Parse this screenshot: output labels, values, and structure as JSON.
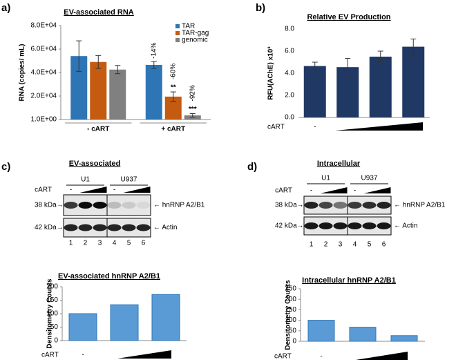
{
  "panel_labels": [
    "a)",
    "b)",
    "c)",
    "d)"
  ],
  "chart_data": [
    {
      "type": "bar",
      "title": "EV-associated RNA",
      "ylabel": "RNA (copies/ mL)",
      "categories": [
        "- cART",
        "+ cART"
      ],
      "series": [
        {
          "name": "TAR",
          "color": "#2e75b6",
          "values": [
            54000,
            46500
          ],
          "errors": [
            13000,
            3000
          ],
          "percent_labels": [
            null,
            "-14%"
          ],
          "significance": [
            null,
            null
          ]
        },
        {
          "name": "TAR-gag",
          "color": "#c55a11",
          "values": [
            49000,
            19500
          ],
          "errors": [
            5500,
            4000
          ],
          "percent_labels": [
            null,
            "-60%"
          ],
          "significance": [
            null,
            "**"
          ]
        },
        {
          "name": "genomic",
          "color": "#808080",
          "values": [
            42500,
            3500
          ],
          "errors": [
            3500,
            1500
          ],
          "percent_labels": [
            null,
            "-92%"
          ],
          "significance": [
            null,
            "***"
          ]
        }
      ],
      "ylim": [
        1,
        80000
      ],
      "yticks": [
        {
          "value": 1,
          "label": "1.0E+00"
        },
        {
          "value": 20000,
          "label": "2.0E+04"
        },
        {
          "value": 40000,
          "label": "4.0E+04"
        },
        {
          "value": 60000,
          "label": "6.0E+04"
        },
        {
          "value": 80000,
          "label": "8.0E+04"
        }
      ],
      "legend": "top-right"
    },
    {
      "type": "bar",
      "title": "Relative EV Production",
      "ylabel": "RFU(AChE) x10³",
      "xlabel": "cART",
      "categories": [
        "-",
        null,
        null,
        null
      ],
      "color": "#203864",
      "values": [
        4.65,
        4.55,
        5.5,
        6.4
      ],
      "errors": [
        0.35,
        0.8,
        0.5,
        0.7
      ],
      "ylim": [
        0,
        8
      ],
      "yticks": [
        {
          "value": 0,
          "label": "0.0"
        },
        {
          "value": 2,
          "label": "2.0"
        },
        {
          "value": 4,
          "label": "4.0"
        },
        {
          "value": 6,
          "label": "6.0"
        },
        {
          "value": 8,
          "label": "8.0"
        }
      ]
    },
    {
      "type": "bar",
      "title": "EV-associated hnRNP A2/B1",
      "ylabel": "Densitometry Counts",
      "xlabel": "cART",
      "categories": [
        "-",
        null,
        null
      ],
      "color": "#5b9bd5",
      "values": [
        100,
        133,
        171
      ],
      "ylim": [
        0,
        200
      ],
      "yticks": [
        0,
        50,
        100,
        150,
        200
      ]
    },
    {
      "type": "bar",
      "title": "Intracellular hnRNP A2/B1",
      "ylabel": "Densitometry Counts",
      "xlabel": "cART",
      "categories": [
        "-",
        null,
        null
      ],
      "color": "#5b9bd5",
      "values": [
        100,
        67,
        27
      ],
      "ylim": [
        0,
        250
      ],
      "yticks": [
        0,
        50,
        100,
        150,
        200,
        250
      ]
    }
  ],
  "blots": [
    {
      "title": "EV-associated",
      "cell_lines": [
        "U1",
        "U937"
      ],
      "treatment_label": "cART",
      "untreated_labels": [
        "-",
        "-"
      ],
      "size_markers": [
        "38 kDa→",
        "42 kDa→"
      ],
      "protein_labels": [
        "← hnRNP A2/B1",
        "← Actin"
      ],
      "lanes": [
        "1",
        "2",
        "3",
        "4",
        "5",
        "6"
      ]
    },
    {
      "title": "Intracellular",
      "cell_lines": [
        "U1",
        "U937"
      ],
      "treatment_label": "cART",
      "untreated_labels": [
        "-",
        "-"
      ],
      "size_markers": [
        "38 kDa→",
        "42 kDa→"
      ],
      "protein_labels": [
        "← hnRNP A2/B1",
        "← Actin"
      ],
      "lanes": [
        "1",
        "2",
        "3",
        "4",
        "5",
        "6"
      ]
    }
  ]
}
